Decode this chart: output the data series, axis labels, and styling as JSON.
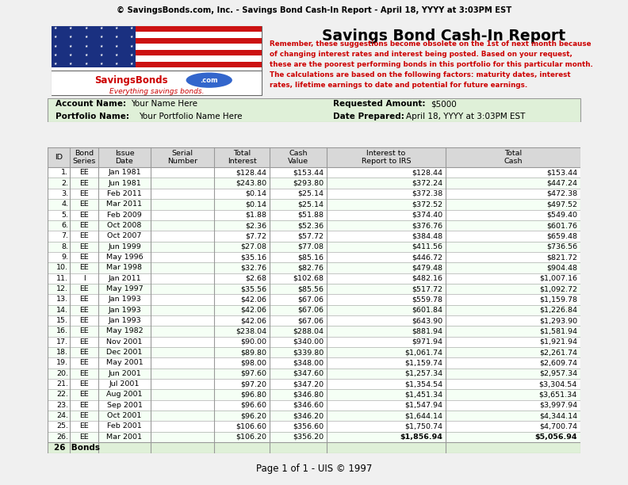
{
  "header_bar_text": "© SavingsBonds.com, Inc. - Savings Bond Cash-In Report - April 18, YYYY at 3:03PM EST",
  "header_bar_bg": "#b8b8b8",
  "title": "Savings Bond Cash-In Report",
  "account_label": "Account Name:",
  "account_value": "Your Name Here",
  "portfolio_label": "Portfolio Name:",
  "portfolio_value": "Your Portfolio Name Here",
  "requested_label": "Requested Amount:",
  "requested_value": "$5000",
  "date_label": "Date Prepared:",
  "date_value": "April 18, YYYY at 3:03PM EST",
  "red_lines": [
    "Remember, these suggestions become obsolete on the 1st of next month because",
    "of changing interest rates and interest being posted. Based on your request,",
    "these are the poorest performing bonds in this portfolio for this particular month.",
    "The calculations are based on the following factors: maturity dates, interest",
    "rates, lifetime earnings to date and potential for future earnings."
  ],
  "col_headers": [
    "ID",
    "Bond\nSeries",
    "Issue\nDate",
    "Serial\nNumber",
    "Total\nInterest",
    "Cash\nValue",
    "Interest to\nReport to IRS",
    "Total\nCash"
  ],
  "rows": [
    [
      "1.",
      "EE",
      "Jan 1981",
      "",
      "$128.44",
      "$153.44",
      "$128.44",
      "$153.44"
    ],
    [
      "2.",
      "EE",
      "Jun 1981",
      "",
      "$243.80",
      "$293.80",
      "$372.24",
      "$447.24"
    ],
    [
      "3.",
      "EE",
      "Feb 2011",
      "",
      "$0.14",
      "$25.14",
      "$372.38",
      "$472.38"
    ],
    [
      "4.",
      "EE",
      "Mar 2011",
      "",
      "$0.14",
      "$25.14",
      "$372.52",
      "$497.52"
    ],
    [
      "5.",
      "EE",
      "Feb 2009",
      "",
      "$1.88",
      "$51.88",
      "$374.40",
      "$549.40"
    ],
    [
      "6.",
      "EE",
      "Oct 2008",
      "",
      "$2.36",
      "$52.36",
      "$376.76",
      "$601.76"
    ],
    [
      "7.",
      "EE",
      "Oct 2007",
      "",
      "$7.72",
      "$57.72",
      "$384.48",
      "$659.48"
    ],
    [
      "8.",
      "EE",
      "Jun 1999",
      "",
      "$27.08",
      "$77.08",
      "$411.56",
      "$736.56"
    ],
    [
      "9.",
      "EE",
      "May 1996",
      "",
      "$35.16",
      "$85.16",
      "$446.72",
      "$821.72"
    ],
    [
      "10.",
      "EE",
      "Mar 1998",
      "",
      "$32.76",
      "$82.76",
      "$479.48",
      "$904.48"
    ],
    [
      "11.",
      "I",
      "Jan 2011",
      "",
      "$2.68",
      "$102.68",
      "$482.16",
      "$1,007.16"
    ],
    [
      "12.",
      "EE",
      "May 1997",
      "",
      "$35.56",
      "$85.56",
      "$517.72",
      "$1,092.72"
    ],
    [
      "13.",
      "EE",
      "Jan 1993",
      "",
      "$42.06",
      "$67.06",
      "$559.78",
      "$1,159.78"
    ],
    [
      "14.",
      "EE",
      "Jan 1993",
      "",
      "$42.06",
      "$67.06",
      "$601.84",
      "$1,226.84"
    ],
    [
      "15.",
      "EE",
      "Jan 1993",
      "",
      "$42.06",
      "$67.06",
      "$643.90",
      "$1,293.90"
    ],
    [
      "16.",
      "EE",
      "May 1982",
      "",
      "$238.04",
      "$288.04",
      "$881.94",
      "$1,581.94"
    ],
    [
      "17.",
      "EE",
      "Nov 2001",
      "",
      "$90.00",
      "$340.00",
      "$971.94",
      "$1,921.94"
    ],
    [
      "18.",
      "EE",
      "Dec 2001",
      "",
      "$89.80",
      "$339.80",
      "$1,061.74",
      "$2,261.74"
    ],
    [
      "19.",
      "EE",
      "May 2001",
      "",
      "$98.00",
      "$348.00",
      "$1,159.74",
      "$2,609.74"
    ],
    [
      "20.",
      "EE",
      "Jun 2001",
      "",
      "$97.60",
      "$347.60",
      "$1,257.34",
      "$2,957.34"
    ],
    [
      "21.",
      "EE",
      "Jul 2001",
      "",
      "$97.20",
      "$347.20",
      "$1,354.54",
      "$3,304.54"
    ],
    [
      "22.",
      "EE",
      "Aug 2001",
      "",
      "$96.80",
      "$346.80",
      "$1,451.34",
      "$3,651.34"
    ],
    [
      "23.",
      "EE",
      "Sep 2001",
      "",
      "$96.60",
      "$346.60",
      "$1,547.94",
      "$3,997.94"
    ],
    [
      "24.",
      "EE",
      "Oct 2001",
      "",
      "$96.20",
      "$346.20",
      "$1,644.14",
      "$4,344.14"
    ],
    [
      "25.",
      "EE",
      "Feb 2001",
      "",
      "$106.60",
      "$356.60",
      "$1,750.74",
      "$4,700.74"
    ],
    [
      "26.",
      "EE",
      "Mar 2001",
      "",
      "$106.20",
      "$356.20",
      "$1,856.94",
      "$5,056.94"
    ]
  ],
  "footer_text": "Page 1 of 1 - UIS © 1997",
  "bg_light_green": "#dff0d8",
  "table_header_bg": "#d8d8d8",
  "footer_row_bg": "#dff0d8",
  "red_color": "#cc0000",
  "border_color": "#999999"
}
